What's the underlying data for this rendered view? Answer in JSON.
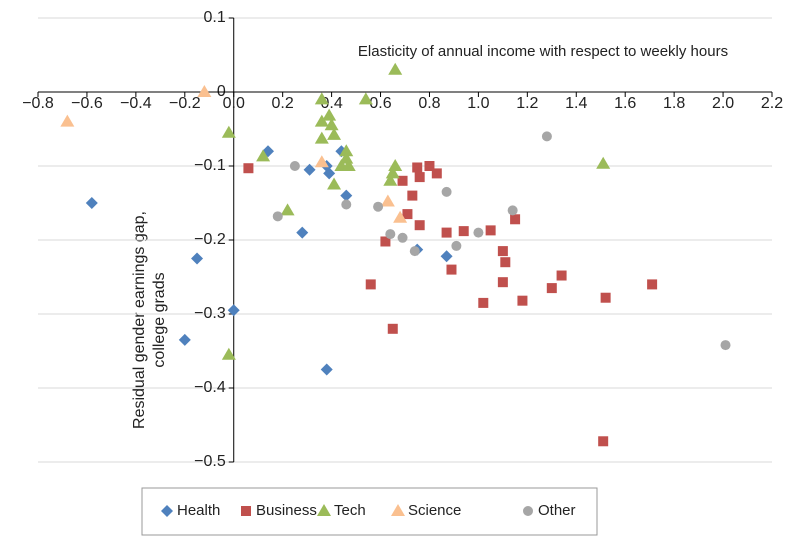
{
  "chart_data": {
    "type": "scatter",
    "annotation": "Elasticity of annual income with respect to weekly hours",
    "ylabel": [
      "Residual gender earnings gap,",
      "college grads"
    ],
    "xlim": [
      -0.8,
      2.2
    ],
    "xticks": [
      {
        "value": -0.8,
        "label": "−0.8"
      },
      {
        "value": -0.6,
        "label": "−0.6"
      },
      {
        "value": -0.4,
        "label": "−0.4"
      },
      {
        "value": -0.2,
        "label": "−0.2"
      },
      {
        "value": 0,
        "label": "0.0"
      },
      0.2,
      0.4,
      0.6,
      0.8,
      {
        "value": 1,
        "label": "1.0"
      },
      1.2,
      1.4,
      1.6,
      1.8,
      {
        "value": 2,
        "label": "2.0"
      },
      2.2
    ],
    "ylim": [
      -0.5,
      0.1
    ],
    "yticks": [
      0.1,
      0,
      {
        "value": -0.1,
        "label": "−0.1"
      },
      {
        "value": -0.2,
        "label": "−0.2"
      },
      {
        "value": -0.3,
        "label": "−0.3"
      },
      {
        "value": -0.4,
        "label": "−0.4"
      },
      {
        "value": -0.5,
        "label": "−0.5"
      }
    ],
    "grid": true,
    "legend": "bottom",
    "series": [
      {
        "name": "Health",
        "color": "#4f81bd",
        "marker": "diamond",
        "x": [
          -0.58,
          0.14,
          -0.15,
          -0.2,
          0.0,
          0.28,
          0.31,
          0.38,
          0.39,
          0.44,
          0.46,
          0.75,
          0.87,
          0.38
        ],
        "y": [
          -0.15,
          -0.08,
          -0.225,
          -0.335,
          -0.295,
          -0.19,
          -0.105,
          -0.375,
          -0.11,
          -0.08,
          -0.14,
          -0.213,
          -0.222,
          -0.1
        ]
      },
      {
        "name": "Business",
        "color": "#c0504d",
        "marker": "square",
        "x": [
          0.06,
          0.56,
          0.62,
          0.65,
          0.69,
          0.71,
          0.73,
          0.75,
          0.76,
          0.76,
          0.8,
          0.83,
          0.87,
          0.89,
          0.94,
          1.02,
          1.05,
          1.1,
          1.1,
          1.11,
          1.15,
          1.18,
          1.3,
          1.34,
          1.51,
          1.52,
          1.71
        ],
        "y": [
          -0.103,
          -0.26,
          -0.202,
          -0.32,
          -0.12,
          -0.165,
          -0.14,
          -0.102,
          -0.115,
          -0.18,
          -0.1,
          -0.11,
          -0.19,
          -0.24,
          -0.188,
          -0.285,
          -0.187,
          -0.215,
          -0.257,
          -0.23,
          -0.172,
          -0.282,
          -0.265,
          -0.248,
          -0.472,
          -0.278,
          -0.26
        ]
      },
      {
        "name": "Tech",
        "color": "#9bbb59",
        "marker": "triangle",
        "x": [
          -0.02,
          0.12,
          0.22,
          -0.02,
          0.36,
          0.36,
          0.36,
          0.39,
          0.4,
          0.41,
          0.41,
          0.44,
          0.46,
          0.46,
          0.47,
          0.54,
          0.64,
          0.65,
          0.66,
          0.66,
          1.51
        ],
        "y": [
          -0.055,
          -0.087,
          -0.16,
          -0.355,
          -0.01,
          -0.04,
          -0.063,
          -0.032,
          -0.045,
          -0.058,
          -0.125,
          -0.1,
          -0.08,
          -0.09,
          -0.1,
          -0.01,
          -0.12,
          -0.11,
          -0.1,
          0.03,
          -0.097
        ]
      },
      {
        "name": "Science",
        "color": "#fac090",
        "marker": "triangle",
        "x": [
          -0.68,
          -0.12,
          0.36,
          0.63,
          0.68
        ],
        "y": [
          -0.04,
          0.0,
          -0.095,
          -0.148,
          -0.17
        ]
      },
      {
        "name": "Other",
        "color": "#a6a6a6",
        "marker": "circle",
        "x": [
          0.25,
          0.18,
          0.46,
          0.59,
          0.64,
          0.69,
          0.74,
          0.87,
          0.91,
          1.0,
          1.14,
          1.28,
          2.01
        ],
        "y": [
          -0.1,
          -0.168,
          -0.152,
          -0.155,
          -0.192,
          -0.197,
          -0.215,
          -0.135,
          -0.208,
          -0.19,
          -0.16,
          -0.06,
          -0.342
        ]
      }
    ]
  }
}
